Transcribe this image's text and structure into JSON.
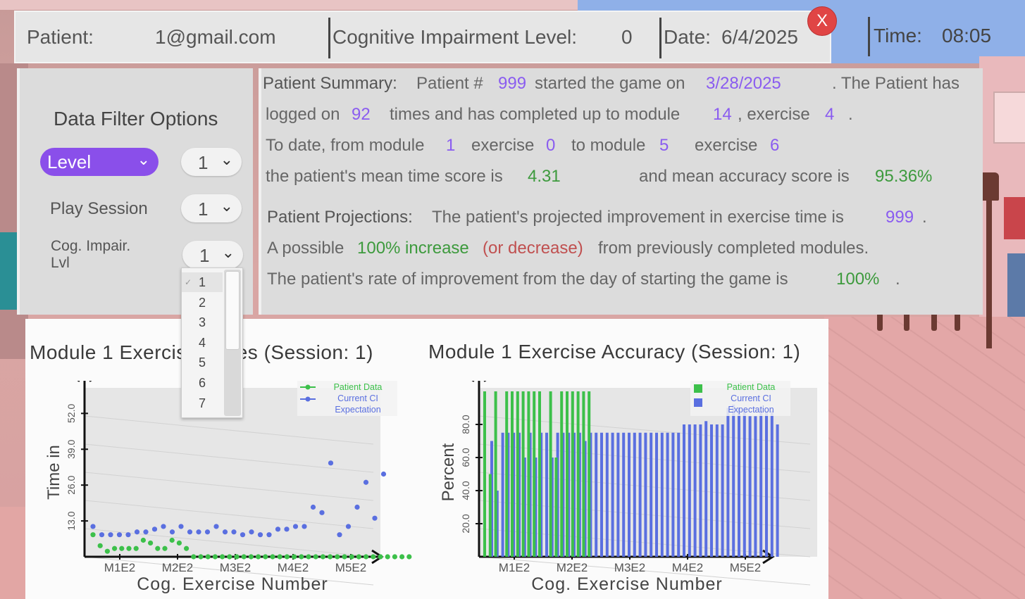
{
  "header": {
    "patient_label": "Patient:",
    "patient_value": "1@gmail.com",
    "ci_label": "Cognitive Impairment Level:",
    "ci_value": "0",
    "date_label": "Date:",
    "date_value": "6/4/2025",
    "close_label": "X",
    "time_label": "Time:",
    "time_value": "08:05"
  },
  "filter": {
    "title": "Data Filter Options",
    "level_label": "Level",
    "level_value": "1",
    "session_label": "Play Session",
    "session_value": "1",
    "cog_label_line1": "Cog. Impair.",
    "cog_label_line2": "Lvl",
    "cog_value": "1",
    "cog_options": [
      "1",
      "2",
      "3",
      "4",
      "5",
      "6",
      "7"
    ]
  },
  "summary": {
    "l1_a": "Patient Summary:",
    "l1_b": "Patient #",
    "patient_num": "999",
    "l1_c": "started the game on",
    "start_date": "3/28/2025",
    "l1_d": ". The Patient has",
    "l2_a": "logged on",
    "logins": "92",
    "l2_b": "times and has completed up to module",
    "module": "14",
    "l2_c": ", exercise",
    "exercise": "4",
    "l2_d": ".",
    "l3_a": "To date, from module",
    "from_module": "1",
    "l3_b": "exercise",
    "from_exercise": "0",
    "l3_c": "to module",
    "to_module": "5",
    "l3_d": "exercise",
    "to_exercise": "6",
    "l4_a": "the patient's mean time score is",
    "mean_time": "4.31",
    "l4_b": "and mean accuracy score is",
    "mean_accuracy": "95.36%",
    "l5_a": "Patient Projections:",
    "l5_b": "The patient's projected improvement in exercise time is",
    "projected": "999",
    "l5_c": ".",
    "l6_a": "A possible",
    "l6_increase": "100% increase",
    "l6_decrease": "(or decrease)",
    "l6_b": "from previously completed modules.",
    "l7_a": "The patient's rate of improvement from the day of starting the game is",
    "rate": "100%",
    "l7_b": "."
  },
  "chart_data": [
    {
      "type": "scatter",
      "title": "Module 1 Exercise Times (Session: 1)",
      "xlabel": "Cog. Exercise Number",
      "ylabel": "Time in",
      "yticks": [
        "13.0",
        "26.0",
        "39.0",
        "52.0"
      ],
      "ylim": [
        0,
        60
      ],
      "xticks": [
        "M1E2",
        "M2E2",
        "M3E2",
        "M4E2",
        "M5E2"
      ],
      "legend_position": "top-right",
      "colors": {
        "patient": "#3cc04a",
        "expectation": "#5a6fe0"
      },
      "series": [
        {
          "name": "Patient Data",
          "values": [
            8,
            4,
            2,
            3,
            3,
            3,
            3,
            6,
            5,
            3,
            3,
            6,
            5,
            3,
            0,
            0,
            0,
            0,
            0,
            0,
            0,
            0,
            0,
            0,
            0,
            0,
            0,
            0,
            0,
            0,
            0,
            0,
            0,
            0,
            0,
            0,
            0,
            0,
            0,
            0,
            0,
            0,
            0,
            0,
            0
          ]
        },
        {
          "name": "Current CI\nExpectation",
          "values": [
            11,
            8,
            8,
            8,
            8,
            9,
            9,
            10,
            11,
            9,
            11,
            9,
            9,
            9,
            11,
            9,
            9,
            8,
            9,
            8,
            8,
            10,
            10,
            11,
            11,
            18,
            16,
            34,
            8,
            11,
            18,
            27,
            14,
            30
          ]
        }
      ]
    },
    {
      "type": "bar",
      "title": "Module 1 Exercise Accuracy (Session: 1)",
      "xlabel": "Cog. Exercise Number",
      "ylabel": "Percent",
      "yticks": [
        "20.0",
        "40.0",
        "60.0",
        "80.0"
      ],
      "ylim": [
        0,
        100
      ],
      "xticks": [
        "M1E2",
        "M2E2",
        "M3E2",
        "M4E2",
        "M5E2"
      ],
      "legend_position": "top-right",
      "colors": {
        "patient": "#3cc04a",
        "expectation": "#5a6fe0"
      },
      "series": [
        {
          "name": "Patient Data",
          "values": [
            100,
            50,
            100,
            0,
            100,
            100,
            100,
            100,
            100,
            100,
            100,
            0,
            100,
            60,
            100,
            100,
            100,
            100,
            100,
            100,
            0,
            0,
            0,
            0,
            0,
            0,
            0,
            0,
            0,
            0,
            0,
            0,
            0,
            0,
            0,
            0,
            0,
            0,
            0,
            0,
            0,
            0,
            0,
            0,
            0,
            0,
            0,
            0,
            0,
            0
          ]
        },
        {
          "name": "Current CI\nExpectation",
          "values": [
            70,
            40,
            75,
            75,
            75,
            75,
            60,
            75,
            60,
            75,
            75,
            60,
            75,
            75,
            75,
            75,
            75,
            70,
            75,
            75,
            75,
            75,
            75,
            75,
            75,
            75,
            75,
            75,
            75,
            75,
            75,
            75,
            75,
            75,
            75,
            80,
            80,
            80,
            80,
            82,
            80,
            80,
            80,
            90,
            92,
            90,
            88,
            85,
            85,
            88,
            88,
            88,
            80
          ]
        }
      ]
    }
  ]
}
